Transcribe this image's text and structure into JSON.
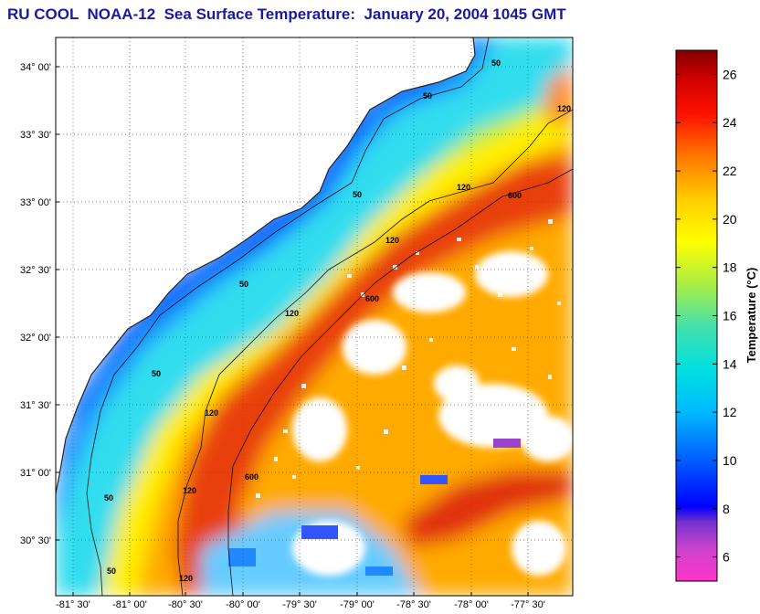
{
  "title": "RU COOL  NOAA-12  Sea Surface Temperature:  January 20, 2004 1045 GMT",
  "map": {
    "lat_labels": [
      "34° 00'",
      "33° 30'",
      "33° 00'",
      "32° 30'",
      "32° 00'",
      "31° 30'",
      "31° 00'",
      "30° 30'"
    ],
    "lon_labels": [
      "-81° 30'",
      "-81° 00'",
      "-80° 30'",
      "-80° 00'",
      "-79° 30'",
      "-79° 00'",
      "-78° 30'",
      "-78° 00'",
      "-77° 30'"
    ],
    "isobath_labels": [
      "50",
      "120",
      "600"
    ],
    "colors": {
      "land": "#ffffff",
      "cloud_gaps": "#ffffff",
      "coast_water": "#1e78ff",
      "gulf_stream": "#e03010"
    }
  },
  "colorbar": {
    "label": "Temperature (°C)",
    "ticks": [
      6,
      8,
      10,
      12,
      14,
      16,
      18,
      20,
      22,
      24,
      26
    ],
    "range": [
      5,
      27
    ],
    "scheme": "jet-with-magenta-low"
  }
}
